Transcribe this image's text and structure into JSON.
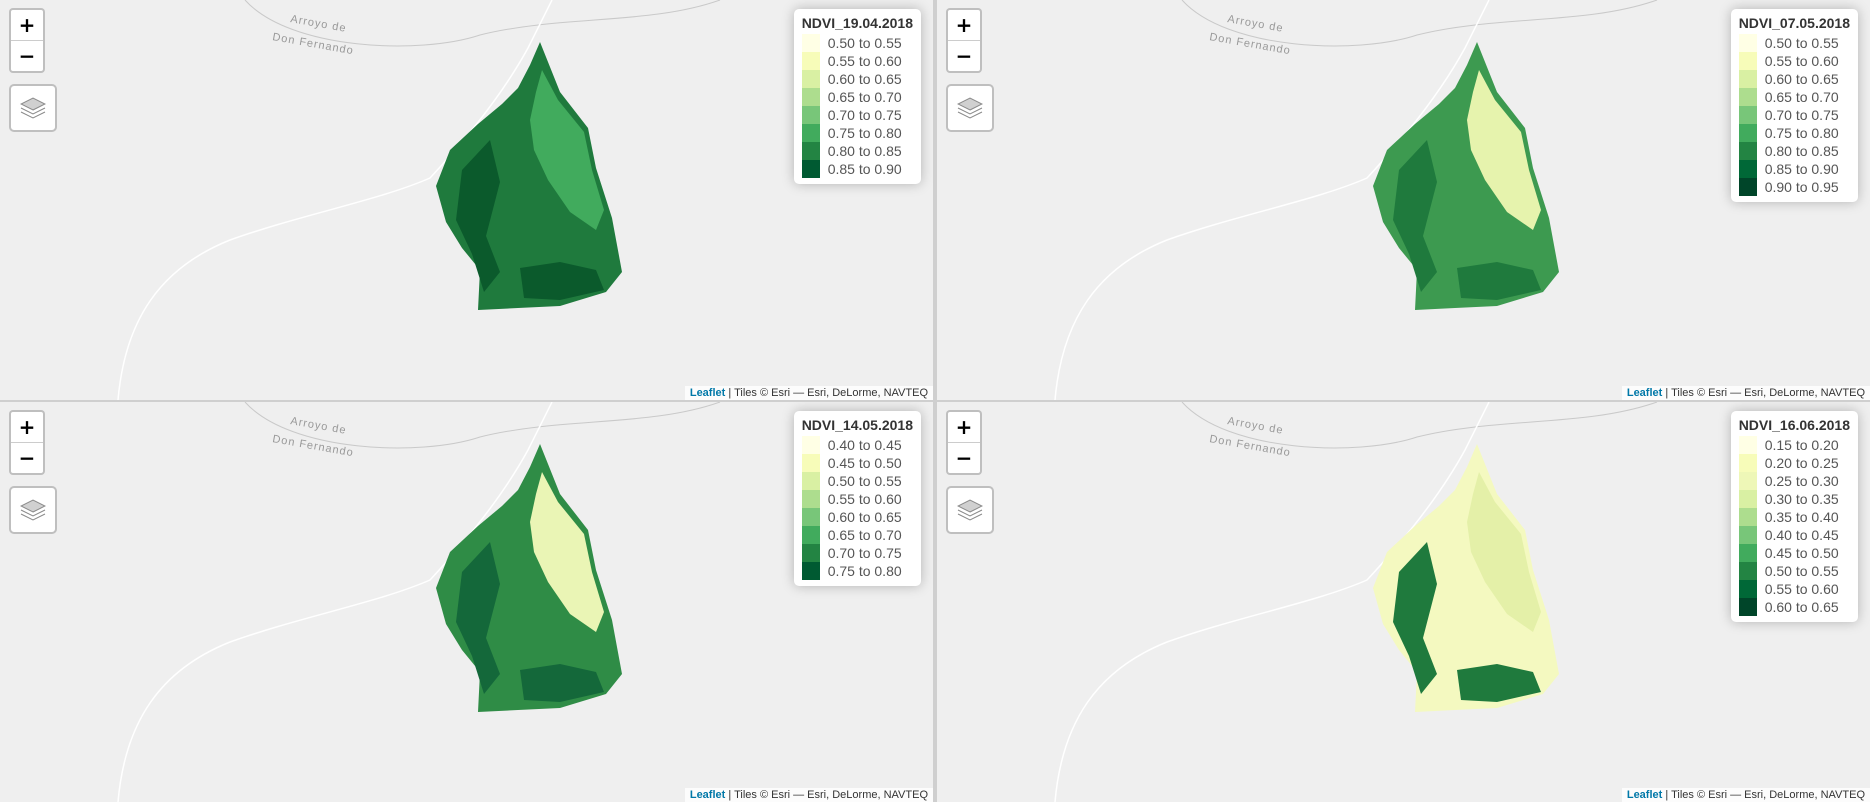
{
  "panels": [
    {
      "title": "NDVI_19.04.2018",
      "classes": [
        "0.50 to 0.55",
        "0.55 to 0.60",
        "0.60 to 0.65",
        "0.65 to 0.70",
        "0.70 to 0.75",
        "0.75 to 0.80",
        "0.80 to 0.85",
        "0.85 to 0.90"
      ],
      "colors": [
        "#ffffe5",
        "#f7fcb9",
        "#d9f0a3",
        "#addd8e",
        "#78c679",
        "#41ab5d",
        "#238443",
        "#005a32"
      ],
      "fill_main": "#1f7a3d",
      "fill_light": "#41ab5d",
      "fill_dark": "#0b5a2c"
    },
    {
      "title": "NDVI_07.05.2018",
      "classes": [
        "0.50 to 0.55",
        "0.55 to 0.60",
        "0.60 to 0.65",
        "0.65 to 0.70",
        "0.70 to 0.75",
        "0.75 to 0.80",
        "0.80 to 0.85",
        "0.85 to 0.90",
        "0.90 to 0.95"
      ],
      "colors": [
        "#ffffe5",
        "#f7fcb9",
        "#d9f0a3",
        "#addd8e",
        "#78c679",
        "#41ab5d",
        "#238443",
        "#006837",
        "#004529"
      ],
      "fill_main": "#3d9a50",
      "fill_light": "#e6f3ad",
      "fill_dark": "#1f7a3d"
    },
    {
      "title": "NDVI_14.05.2018",
      "classes": [
        "0.40 to 0.45",
        "0.45 to 0.50",
        "0.50 to 0.55",
        "0.55 to 0.60",
        "0.60 to 0.65",
        "0.65 to 0.70",
        "0.70 to 0.75",
        "0.75 to 0.80"
      ],
      "colors": [
        "#ffffe5",
        "#f7fcb9",
        "#d9f0a3",
        "#addd8e",
        "#78c679",
        "#41ab5d",
        "#238443",
        "#005a32"
      ],
      "fill_main": "#2f8c46",
      "fill_light": "#eaf5b5",
      "fill_dark": "#14683a"
    },
    {
      "title": "NDVI_16.06.2018",
      "classes": [
        "0.15 to 0.20",
        "0.20 to 0.25",
        "0.25 to 0.30",
        "0.30 to 0.35",
        "0.35 to 0.40",
        "0.40 to 0.45",
        "0.45 to 0.50",
        "0.50 to 0.55",
        "0.55 to 0.60",
        "0.60 to 0.65"
      ],
      "colors": [
        "#ffffe5",
        "#f7fcb9",
        "#eef7b7",
        "#d9f0a3",
        "#addd8e",
        "#78c679",
        "#41ab5d",
        "#238443",
        "#006837",
        "#004529"
      ],
      "fill_main": "#f4f9c0",
      "fill_light": "#e4f0a8",
      "fill_dark": "#1f7a3d"
    }
  ],
  "place_label_1": "Arroyo de",
  "place_label_2": "Don Fernando",
  "zoom_in": "+",
  "zoom_out": "−",
  "attribution_link": "Leaflet",
  "attribution_text": " | Tiles © Esri — Esri, DeLorme, NAVTEQ"
}
